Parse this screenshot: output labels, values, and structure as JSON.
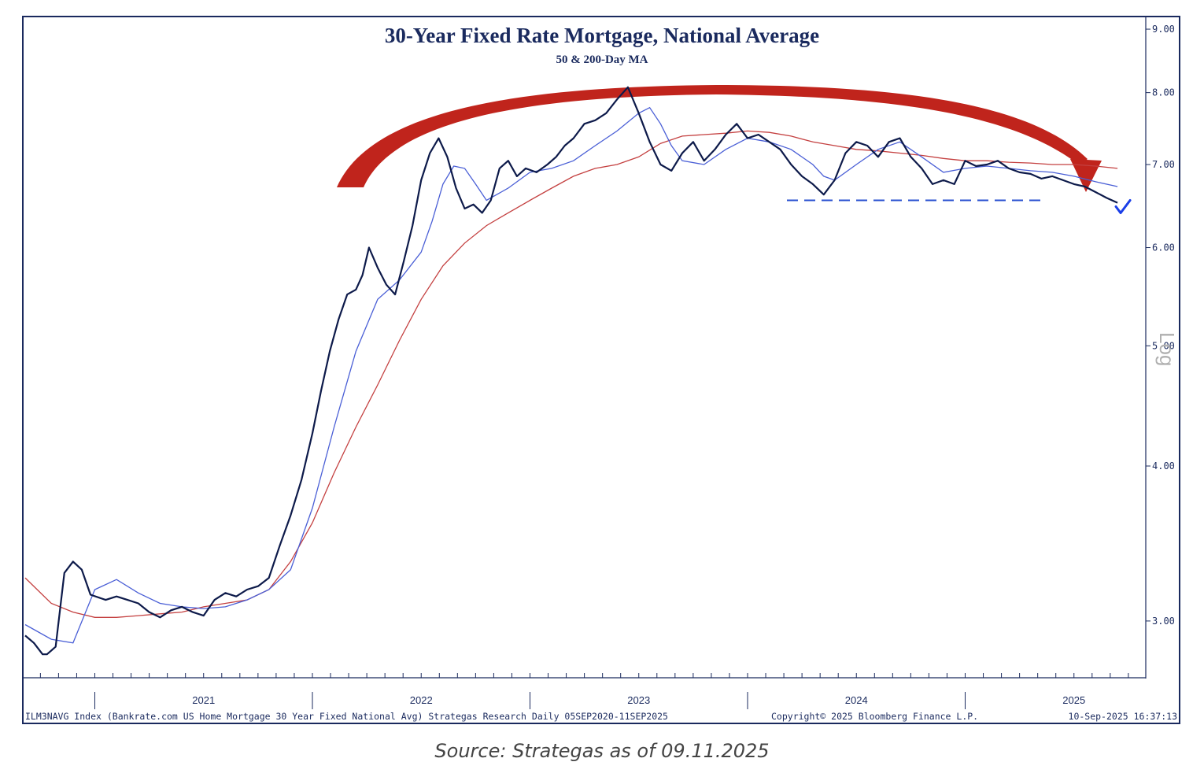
{
  "colors": {
    "price": "#0d1a4a",
    "ma50": "#4a5fd6",
    "ma200": "#c44040",
    "arrow": "#c0241c",
    "axis": "#1a2a5e",
    "dashed": "#2850d0",
    "check": "#1a3ee8"
  },
  "chart_data": {
    "type": "line",
    "title": "30-Year Fixed Rate Mortgage, National Average",
    "subtitle": "50 & 200-Day MA",
    "scale": "Log",
    "ylim": [
      2.7,
      9.2
    ],
    "y_ticks": [
      "9.00",
      "8.00",
      "7.00",
      "6.00",
      "5.00",
      "4.00",
      "3.00"
    ],
    "x_range": [
      2020.68,
      2025.83
    ],
    "x_tick_labels": [
      {
        "year": 2021,
        "label": "2021"
      },
      {
        "year": 2022,
        "label": "2022"
      },
      {
        "year": 2023,
        "label": "2023"
      },
      {
        "year": 2024,
        "label": "2024"
      },
      {
        "year": 2025,
        "label": "2025"
      }
    ],
    "support_level": 6.55,
    "series": [
      {
        "name": "30-Year Fixed Rate Mortgage",
        "x": [
          2020.68,
          2020.72,
          2020.76,
          2020.78,
          2020.8,
          2020.82,
          2020.86,
          2020.9,
          2020.94,
          2020.98,
          2021.05,
          2021.1,
          2021.15,
          2021.2,
          2021.25,
          2021.3,
          2021.35,
          2021.4,
          2021.45,
          2021.5,
          2021.55,
          2021.6,
          2021.65,
          2021.7,
          2021.75,
          2021.8,
          2021.85,
          2021.9,
          2021.95,
          2022.0,
          2022.04,
          2022.08,
          2022.12,
          2022.16,
          2022.2,
          2022.23,
          2022.26,
          2022.3,
          2022.34,
          2022.38,
          2022.42,
          2022.46,
          2022.5,
          2022.54,
          2022.58,
          2022.62,
          2022.66,
          2022.7,
          2022.74,
          2022.78,
          2022.82,
          2022.86,
          2022.9,
          2022.94,
          2022.98,
          2023.03,
          2023.08,
          2023.12,
          2023.16,
          2023.2,
          2023.25,
          2023.3,
          2023.35,
          2023.4,
          2023.45,
          2023.5,
          2023.55,
          2023.6,
          2023.65,
          2023.7,
          2023.75,
          2023.8,
          2023.85,
          2023.9,
          2023.95,
          2024.0,
          2024.05,
          2024.1,
          2024.15,
          2024.2,
          2024.25,
          2024.3,
          2024.35,
          2024.4,
          2024.45,
          2024.5,
          2024.55,
          2024.6,
          2024.65,
          2024.7,
          2024.75,
          2024.8,
          2024.85,
          2024.9,
          2024.95,
          2025.0,
          2025.05,
          2025.1,
          2025.15,
          2025.2,
          2025.25,
          2025.3,
          2025.35,
          2025.4,
          2025.45,
          2025.5,
          2025.55,
          2025.6,
          2025.65,
          2025.7
        ],
        "values": [
          2.92,
          2.88,
          2.82,
          2.82,
          2.84,
          2.86,
          3.28,
          3.35,
          3.3,
          3.15,
          3.12,
          3.14,
          3.12,
          3.1,
          3.05,
          3.02,
          3.06,
          3.08,
          3.05,
          3.03,
          3.12,
          3.16,
          3.14,
          3.18,
          3.2,
          3.25,
          3.45,
          3.65,
          3.9,
          4.25,
          4.6,
          4.95,
          5.25,
          5.5,
          5.55,
          5.7,
          6.0,
          5.78,
          5.6,
          5.5,
          5.85,
          6.25,
          6.8,
          7.15,
          7.35,
          7.1,
          6.7,
          6.45,
          6.5,
          6.4,
          6.55,
          6.95,
          7.05,
          6.85,
          6.95,
          6.9,
          7.0,
          7.1,
          7.25,
          7.35,
          7.55,
          7.6,
          7.7,
          7.9,
          8.08,
          7.7,
          7.3,
          7.0,
          6.92,
          7.15,
          7.3,
          7.05,
          7.2,
          7.4,
          7.55,
          7.35,
          7.4,
          7.3,
          7.2,
          7.0,
          6.85,
          6.75,
          6.62,
          6.8,
          7.15,
          7.3,
          7.25,
          7.1,
          7.3,
          7.35,
          7.1,
          6.95,
          6.75,
          6.8,
          6.75,
          7.05,
          6.98,
          7.0,
          7.05,
          6.95,
          6.9,
          6.88,
          6.82,
          6.85,
          6.8,
          6.75,
          6.72,
          6.65,
          6.58,
          6.52
        ]
      },
      {
        "name": "50-Day MA",
        "x": [
          2020.68,
          2020.8,
          2020.9,
          2021.0,
          2021.1,
          2021.2,
          2021.3,
          2021.4,
          2021.5,
          2021.6,
          2021.7,
          2021.8,
          2021.9,
          2022.0,
          2022.1,
          2022.2,
          2022.3,
          2022.4,
          2022.5,
          2022.55,
          2022.6,
          2022.65,
          2022.7,
          2022.75,
          2022.8,
          2022.9,
          2023.0,
          2023.1,
          2023.2,
          2023.3,
          2023.4,
          2023.5,
          2023.55,
          2023.6,
          2023.65,
          2023.7,
          2023.8,
          2023.9,
          2024.0,
          2024.1,
          2024.2,
          2024.3,
          2024.35,
          2024.4,
          2024.5,
          2024.6,
          2024.7,
          2024.8,
          2024.9,
          2025.0,
          2025.1,
          2025.2,
          2025.3,
          2025.4,
          2025.5,
          2025.6,
          2025.7
        ],
        "values": [
          2.98,
          2.9,
          2.88,
          3.18,
          3.24,
          3.16,
          3.1,
          3.08,
          3.07,
          3.08,
          3.12,
          3.18,
          3.3,
          3.7,
          4.3,
          4.95,
          5.45,
          5.65,
          5.95,
          6.3,
          6.75,
          6.98,
          6.95,
          6.75,
          6.55,
          6.7,
          6.9,
          6.95,
          7.05,
          7.25,
          7.45,
          7.7,
          7.78,
          7.55,
          7.25,
          7.05,
          7.0,
          7.2,
          7.35,
          7.3,
          7.2,
          7.0,
          6.85,
          6.8,
          7.0,
          7.2,
          7.3,
          7.1,
          6.9,
          6.95,
          6.98,
          6.95,
          6.92,
          6.9,
          6.85,
          6.78,
          6.72
        ]
      },
      {
        "name": "200-Day MA",
        "x": [
          2020.68,
          2020.8,
          2020.9,
          2021.0,
          2021.1,
          2021.2,
          2021.3,
          2021.4,
          2021.5,
          2021.6,
          2021.7,
          2021.8,
          2021.9,
          2022.0,
          2022.1,
          2022.2,
          2022.3,
          2022.4,
          2022.5,
          2022.6,
          2022.7,
          2022.8,
          2022.9,
          2023.0,
          2023.1,
          2023.2,
          2023.3,
          2023.4,
          2023.5,
          2023.6,
          2023.7,
          2023.8,
          2023.9,
          2024.0,
          2024.1,
          2024.2,
          2024.3,
          2024.4,
          2024.5,
          2024.6,
          2024.7,
          2024.8,
          2024.9,
          2025.0,
          2025.1,
          2025.2,
          2025.3,
          2025.4,
          2025.5,
          2025.6,
          2025.7
        ],
        "values": [
          3.25,
          3.1,
          3.05,
          3.02,
          3.02,
          3.03,
          3.04,
          3.05,
          3.08,
          3.1,
          3.12,
          3.18,
          3.35,
          3.6,
          3.95,
          4.3,
          4.65,
          5.05,
          5.45,
          5.8,
          6.05,
          6.25,
          6.4,
          6.55,
          6.7,
          6.85,
          6.95,
          7.0,
          7.1,
          7.28,
          7.38,
          7.4,
          7.42,
          7.45,
          7.43,
          7.38,
          7.3,
          7.25,
          7.2,
          7.18,
          7.15,
          7.12,
          7.08,
          7.05,
          7.05,
          7.03,
          7.02,
          7.0,
          7.0,
          6.98,
          6.95
        ]
      }
    ]
  },
  "labels": {
    "log": "Log",
    "footer_left": "ILM3NAVG Index (Bankrate.com US Home Mortgage 30 Year Fixed National Avg) Strategas Research  Daily 05SEP2020-11SEP2025",
    "footer_mid": "Copyright© 2025 Bloomberg Finance L.P.",
    "footer_right": "10-Sep-2025 16:37:13",
    "caption": "Source: Strategas as of 09.11.2025"
  }
}
